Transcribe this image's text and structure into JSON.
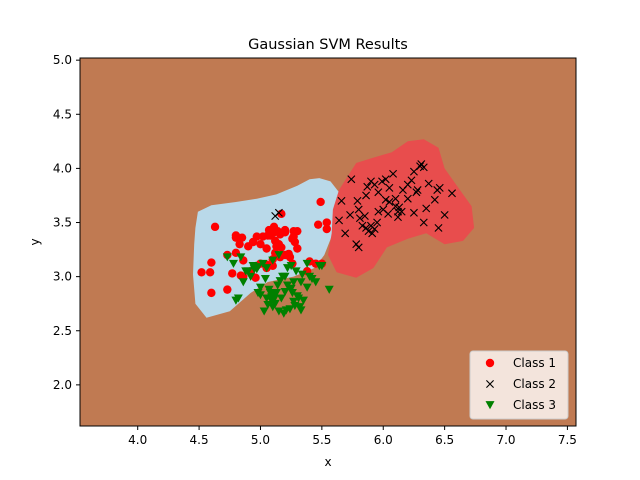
{
  "chart_data": {
    "type": "scatter",
    "title": "Gaussian SVM Results",
    "xlabel": "x",
    "ylabel": "y",
    "xlim": [
      3.53,
      7.57
    ],
    "ylim": [
      1.62,
      5.02
    ],
    "xticks": [
      4.0,
      4.5,
      5.0,
      5.5,
      6.0,
      6.5,
      7.0,
      7.5
    ],
    "yticks": [
      2.0,
      2.5,
      3.0,
      3.5,
      4.0,
      4.5,
      5.0
    ],
    "xtick_labels": [
      "4.0",
      "4.5",
      "5.0",
      "5.5",
      "6.0",
      "6.5",
      "7.0",
      "7.5"
    ],
    "ytick_labels": [
      "2.0",
      "2.5",
      "3.0",
      "3.5",
      "4.0",
      "4.5",
      "5.0"
    ],
    "grid": false,
    "legend_position": "bottom-right",
    "colors": {
      "background_region": "#c07a52",
      "class1_region": "#b9d9e9",
      "class2_region": "#e84d4d",
      "class1": "#ff0000",
      "class2": "#000000",
      "class3": "#008000"
    },
    "regions": [
      {
        "name": "class1-region",
        "color": "#b9d9e9",
        "points": [
          [
            4.47,
            3.45
          ],
          [
            4.49,
            3.6
          ],
          [
            4.6,
            3.66
          ],
          [
            4.8,
            3.69
          ],
          [
            4.97,
            3.72
          ],
          [
            5.13,
            3.76
          ],
          [
            5.3,
            3.84
          ],
          [
            5.4,
            3.9
          ],
          [
            5.48,
            3.91
          ],
          [
            5.57,
            3.88
          ],
          [
            5.64,
            3.78
          ],
          [
            5.66,
            3.56
          ],
          [
            5.59,
            3.4
          ],
          [
            5.52,
            3.2
          ],
          [
            5.44,
            3.08
          ],
          [
            5.27,
            3.0
          ],
          [
            5.06,
            2.95
          ],
          [
            4.92,
            2.85
          ],
          [
            4.75,
            2.68
          ],
          [
            4.56,
            2.62
          ],
          [
            4.47,
            2.75
          ],
          [
            4.45,
            3.02
          ],
          [
            4.46,
            3.3
          ]
        ]
      },
      {
        "name": "class2-region",
        "color": "#e84d4d",
        "points": [
          [
            5.58,
            3.4
          ],
          [
            5.59,
            3.62
          ],
          [
            5.64,
            3.8
          ],
          [
            5.78,
            4.05
          ],
          [
            5.92,
            4.1
          ],
          [
            6.07,
            4.15
          ],
          [
            6.2,
            4.25
          ],
          [
            6.33,
            4.27
          ],
          [
            6.45,
            4.19
          ],
          [
            6.5,
            4.0
          ],
          [
            6.6,
            3.84
          ],
          [
            6.72,
            3.65
          ],
          [
            6.74,
            3.45
          ],
          [
            6.65,
            3.33
          ],
          [
            6.5,
            3.3
          ],
          [
            6.35,
            3.4
          ],
          [
            6.2,
            3.35
          ],
          [
            6.03,
            3.27
          ],
          [
            5.92,
            3.08
          ],
          [
            5.78,
            2.99
          ],
          [
            5.62,
            3.04
          ],
          [
            5.55,
            3.2
          ]
        ]
      }
    ],
    "series": [
      {
        "name": "Class 1",
        "marker": "circle",
        "color": "#ff0000",
        "x": [
          5.17,
          5.27,
          5.26,
          5.11,
          5.27,
          5.2,
          5.07,
          5.14,
          5.2,
          5.15,
          5.12,
          5.23,
          5.22,
          5.1,
          5.0,
          5.16,
          5.28,
          5.3,
          5.26,
          5.24,
          5.08,
          5.1,
          5.16,
          5.05,
          4.97,
          5.05,
          4.9,
          4.83,
          4.8,
          4.8,
          4.86,
          4.94,
          5.02,
          5.06,
          4.97,
          5.17,
          5.13,
          5.12,
          5.1,
          5.3,
          5.38,
          5.45,
          5.47,
          5.54,
          5.54,
          5.49,
          5.5,
          5.4,
          5.05,
          4.96,
          4.86,
          4.84,
          4.73,
          4.63,
          4.6,
          4.59,
          4.52,
          4.6,
          4.73,
          4.77,
          4.8,
          4.85,
          4.92,
          5.0,
          5.2
        ],
        "y": [
          3.58,
          3.42,
          3.35,
          3.46,
          3.37,
          3.43,
          3.43,
          3.42,
          3.41,
          3.3,
          3.22,
          3.21,
          3.2,
          3.16,
          3.3,
          3.39,
          3.32,
          3.26,
          3.12,
          3.18,
          3.38,
          3.4,
          3.18,
          3.11,
          3.1,
          3.26,
          3.28,
          3.3,
          3.36,
          3.38,
          3.15,
          3.32,
          3.37,
          3.38,
          3.37,
          3.27,
          3.28,
          3.33,
          3.1,
          3.42,
          3.05,
          3.12,
          3.48,
          3.5,
          3.44,
          3.69,
          3.12,
          3.14,
          3.08,
          2.99,
          3.0,
          3.01,
          3.2,
          3.46,
          3.13,
          3.04,
          3.04,
          2.85,
          2.88,
          3.03,
          3.22,
          3.36,
          3.05,
          3.12,
          3.2
        ]
      },
      {
        "name": "Class 2",
        "marker": "x",
        "color": "#000000",
        "x": [
          5.74,
          5.79,
          5.86,
          5.87,
          5.9,
          5.93,
          5.96,
          5.99,
          6.02,
          6.05,
          6.08,
          6.1,
          6.13,
          6.16,
          6.2,
          6.23,
          6.25,
          6.27,
          6.3,
          6.31,
          6.33,
          6.37,
          6.42,
          6.44,
          6.46,
          6.5,
          6.56,
          5.83,
          5.85,
          5.9,
          5.95,
          6.0,
          6.1,
          6.12,
          6.2,
          6.28,
          6.35,
          5.66,
          5.73,
          5.81,
          5.91,
          6.04,
          6.15,
          5.64,
          5.69,
          5.78,
          5.8,
          5.86,
          5.93,
          6.02,
          6.12,
          6.25,
          6.33,
          6.45,
          5.8,
          5.88,
          5.96,
          6.05,
          5.15,
          5.12
        ],
        "y": [
          3.9,
          3.7,
          3.75,
          3.83,
          3.88,
          3.85,
          3.78,
          3.88,
          3.9,
          3.82,
          3.95,
          3.72,
          3.64,
          3.8,
          3.85,
          3.89,
          3.97,
          3.78,
          4.02,
          4.04,
          4.01,
          3.86,
          3.71,
          3.8,
          3.82,
          3.57,
          3.77,
          3.47,
          3.56,
          3.47,
          3.5,
          3.62,
          3.65,
          3.6,
          3.72,
          3.8,
          3.63,
          3.7,
          3.57,
          3.54,
          3.4,
          3.58,
          3.6,
          3.52,
          3.4,
          3.3,
          3.27,
          3.45,
          3.44,
          3.71,
          3.55,
          3.59,
          3.5,
          3.45,
          3.62,
          3.42,
          3.6,
          3.69,
          3.59,
          3.56
        ]
      },
      {
        "name": "Class 3",
        "marker": "triangle-down",
        "color": "#008000",
        "x": [
          5.0,
          5.05,
          5.08,
          5.1,
          5.12,
          5.15,
          5.17,
          5.2,
          5.22,
          5.25,
          5.27,
          5.3,
          5.32,
          5.35,
          5.38,
          5.4,
          5.45,
          5.5,
          5.56,
          4.95,
          4.98,
          5.02,
          5.04,
          5.07,
          5.09,
          5.11,
          5.13,
          5.16,
          5.19,
          5.21,
          5.24,
          5.26,
          5.28,
          5.31,
          5.33,
          5.03,
          5.06,
          5.09,
          5.11,
          5.14,
          5.18,
          5.22,
          5.25,
          5.29,
          5.34,
          4.8,
          4.82,
          4.86,
          4.9,
          4.94,
          4.97,
          5.0,
          5.05,
          5.1,
          5.15,
          4.73,
          4.78,
          4.84,
          4.88,
          4.92,
          4.98,
          5.2,
          5.27,
          5.33,
          5.38,
          5.42,
          5.48
        ],
        "y": [
          2.83,
          2.8,
          2.85,
          2.72,
          2.75,
          2.68,
          2.8,
          2.86,
          2.92,
          2.89,
          2.77,
          2.82,
          2.72,
          2.78,
          2.9,
          3.0,
          2.95,
          3.1,
          2.88,
          3.07,
          3.09,
          3.12,
          2.98,
          2.88,
          2.81,
          2.79,
          2.85,
          2.96,
          2.66,
          2.69,
          2.7,
          2.85,
          2.73,
          2.8,
          2.69,
          2.68,
          2.74,
          2.78,
          2.84,
          2.92,
          3.0,
          3.08,
          3.1,
          3.05,
          3.02,
          2.78,
          2.8,
          2.95,
          3.05,
          3.1,
          3.07,
          2.9,
          3.08,
          3.15,
          3.2,
          3.18,
          3.12,
          3.18,
          3.05,
          3.0,
          2.85,
          3.0,
          2.95,
          2.95,
          3.12,
          2.98,
          3.1
        ]
      }
    ]
  }
}
